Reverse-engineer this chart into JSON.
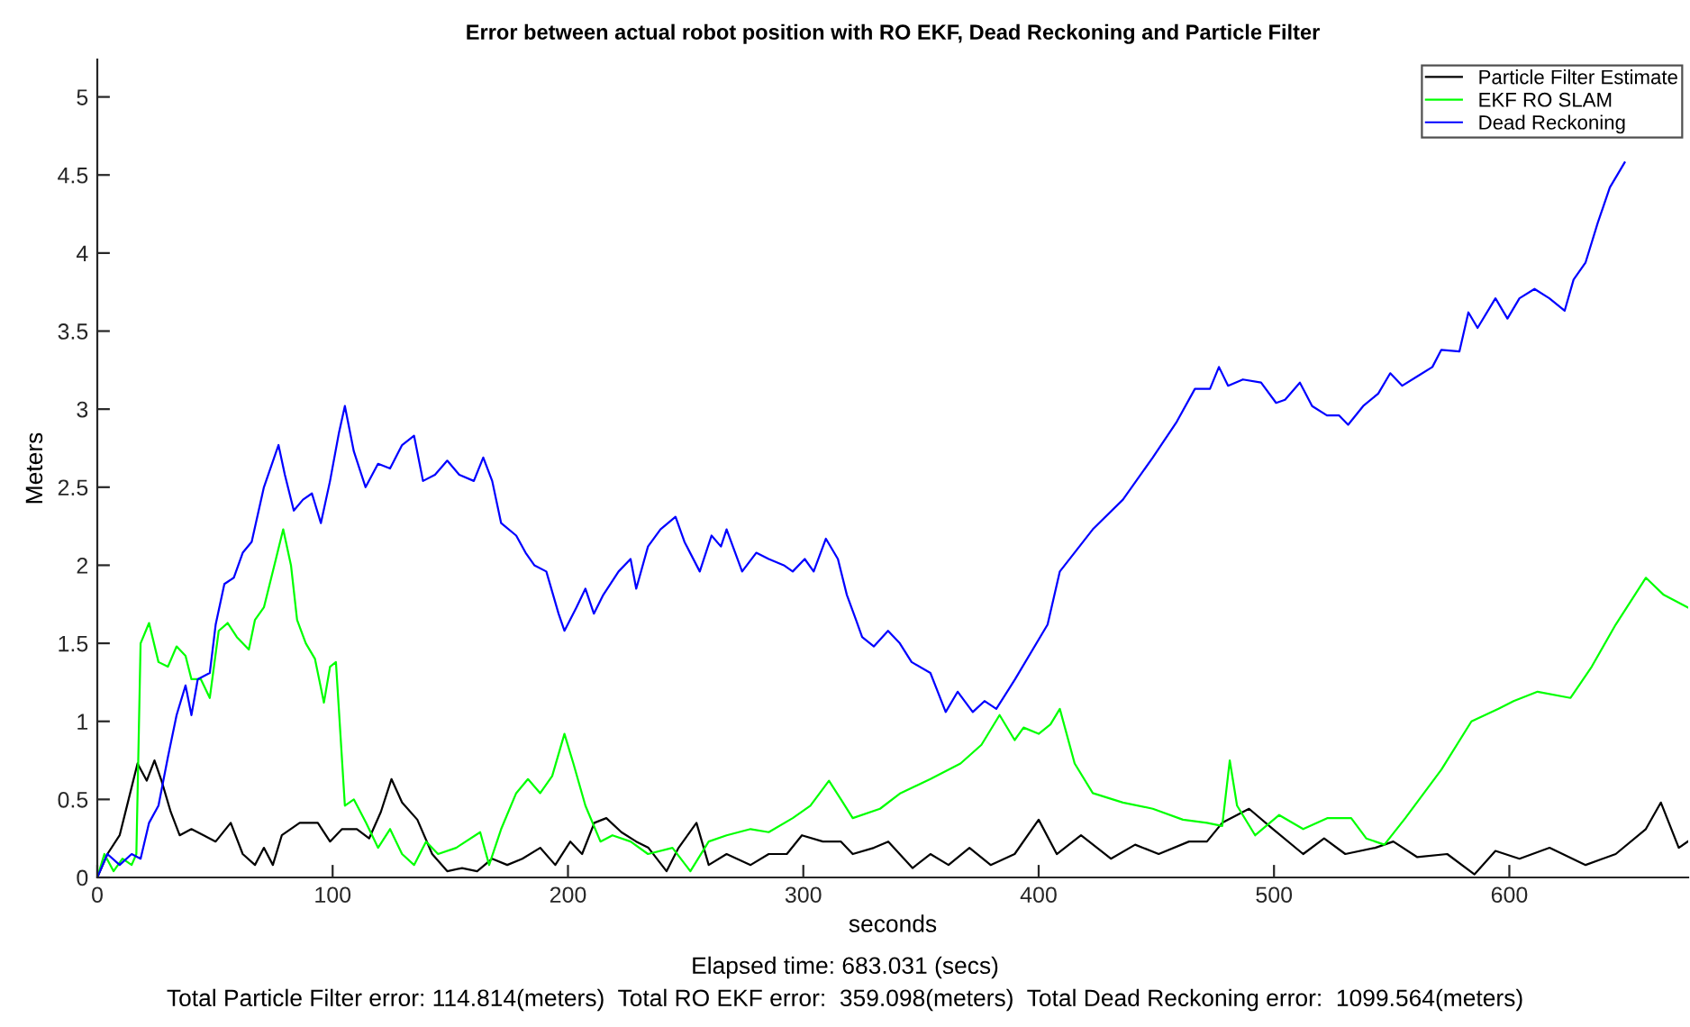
{
  "chart_data": {
    "type": "line",
    "title": "Error between actual robot position with RO EKF, Dead Reckoning and Particle Filter",
    "xlabel": "seconds",
    "ylabel": "Meters",
    "annotations": [
      "Elapsed time: 683.031 (secs)",
      "Total Particle Filter error: 114.814(meters)  Total RO EKF error:  359.098(meters)  Total Dead Reckoning error:  1099.564(meters)"
    ],
    "xlim": [
      0,
      676
    ],
    "ylim": [
      0,
      5.24
    ],
    "xticks": [
      0,
      100,
      200,
      300,
      400,
      500,
      600
    ],
    "yticks": [
      0,
      0.5,
      1,
      1.5,
      2,
      2.5,
      3,
      3.5,
      4,
      4.5,
      5
    ],
    "grid": false,
    "legend": "top right",
    "marker": "none",
    "line_style": "solid",
    "series": [
      {
        "name": "Particle Filter Estimate",
        "color": "#000000",
        "x": [
          0,
          4.3,
          9.5,
          13.3,
          17.1,
          21,
          24.3,
          27.3,
          31.2,
          35,
          40,
          45.2,
          50.3,
          56.7,
          61.8,
          67,
          70.8,
          74.6,
          78.4,
          86,
          93.7,
          98.9,
          104,
          110.3,
          115.5,
          120.5,
          125,
          129.5,
          136,
          142.3,
          148.7,
          155,
          161.4,
          167.8,
          174.2,
          180.6,
          188.2,
          194.6,
          201,
          206,
          211.2,
          216.3,
          222.7,
          229,
          234.2,
          241.9,
          247,
          254.6,
          259.8,
          267.4,
          277.6,
          285.3,
          293,
          299.4,
          308.3,
          316,
          321,
          330,
          336.1,
          346.4,
          354,
          361.7,
          370.6,
          379.6,
          389.8,
          400,
          407.7,
          418,
          430.7,
          441,
          451,
          463.9,
          471.5,
          478,
          489.4,
          499.6,
          512.4,
          521.3,
          530.3,
          543,
          550.7,
          560.9,
          573.6,
          585.2,
          594.1,
          604.3,
          617.1,
          632.4,
          645.2,
          658,
          664.4,
          672,
          675.8
        ],
        "values": [
          0,
          0.15,
          0.27,
          0.5,
          0.73,
          0.62,
          0.75,
          0.62,
          0.42,
          0.27,
          0.31,
          0.27,
          0.23,
          0.35,
          0.15,
          0.08,
          0.19,
          0.08,
          0.27,
          0.35,
          0.35,
          0.23,
          0.31,
          0.31,
          0.25,
          0.42,
          0.63,
          0.48,
          0.37,
          0.15,
          0.04,
          0.06,
          0.04,
          0.12,
          0.08,
          0.12,
          0.19,
          0.08,
          0.23,
          0.15,
          0.35,
          0.38,
          0.29,
          0.23,
          0.19,
          0.04,
          0.19,
          0.35,
          0.08,
          0.15,
          0.08,
          0.15,
          0.15,
          0.27,
          0.23,
          0.23,
          0.15,
          0.19,
          0.23,
          0.06,
          0.15,
          0.08,
          0.19,
          0.08,
          0.15,
          0.37,
          0.15,
          0.27,
          0.12,
          0.21,
          0.15,
          0.23,
          0.23,
          0.35,
          0.44,
          0.31,
          0.15,
          0.25,
          0.15,
          0.19,
          0.23,
          0.13,
          0.15,
          0.02,
          0.17,
          0.12,
          0.19,
          0.08,
          0.15,
          0.31,
          0.48,
          0.19,
          0.23
        ]
      },
      {
        "name": "EKF RO SLAM",
        "color": "#00ff00",
        "x": [
          0,
          3,
          6.9,
          10.7,
          14.6,
          16.6,
          18.4,
          22,
          26,
          30,
          33.7,
          37.5,
          40,
          44,
          47.8,
          51.6,
          55.4,
          59.3,
          64.4,
          67,
          70.8,
          75.9,
          79,
          82.3,
          84.9,
          88.6,
          92.5,
          96.3,
          98.9,
          101.4,
          105.2,
          109,
          114.2,
          119.3,
          124.4,
          129.5,
          134.6,
          139.7,
          144.8,
          152.5,
          162.7,
          166.5,
          171.6,
          178,
          183,
          188.2,
          193.3,
          198.5,
          202.3,
          207.4,
          213.8,
          218.9,
          226.6,
          234,
          244.4,
          252,
          259.8,
          267.4,
          277.6,
          285.3,
          295.5,
          303,
          310.9,
          316,
          321,
          332.6,
          341.3,
          354,
          366.8,
          375.7,
          383.4,
          389.8,
          393.6,
          400,
          405,
          409,
          415.3,
          423,
          435.8,
          448.5,
          461.3,
          471.5,
          478,
          481.2,
          484.3,
          492,
          502.2,
          512.4,
          522.6,
          532.8,
          539.2,
          546.9,
          555.8,
          571.1,
          583.9,
          595.4,
          601.8,
          612,
          626,
          635,
          645.2,
          658,
          665.6,
          675.8
        ],
        "values": [
          0,
          0.15,
          0.04,
          0.12,
          0.08,
          0.15,
          1.5,
          1.63,
          1.38,
          1.35,
          1.48,
          1.42,
          1.27,
          1.27,
          1.15,
          1.58,
          1.63,
          1.54,
          1.46,
          1.65,
          1.73,
          2.04,
          2.23,
          2.0,
          1.65,
          1.5,
          1.4,
          1.12,
          1.35,
          1.38,
          0.46,
          0.5,
          0.35,
          0.19,
          0.31,
          0.15,
          0.08,
          0.23,
          0.15,
          0.19,
          0.29,
          0.08,
          0.31,
          0.54,
          0.63,
          0.54,
          0.65,
          0.92,
          0.73,
          0.46,
          0.23,
          0.27,
          0.23,
          0.15,
          0.19,
          0.04,
          0.23,
          0.27,
          0.31,
          0.29,
          0.38,
          0.46,
          0.62,
          0.5,
          0.38,
          0.44,
          0.54,
          0.63,
          0.73,
          0.85,
          1.04,
          0.88,
          0.96,
          0.92,
          0.98,
          1.08,
          0.73,
          0.54,
          0.48,
          0.44,
          0.37,
          0.35,
          0.33,
          0.75,
          0.46,
          0.27,
          0.4,
          0.31,
          0.38,
          0.38,
          0.25,
          0.21,
          0.38,
          0.69,
          1.0,
          1.08,
          1.13,
          1.19,
          1.15,
          1.35,
          1.62,
          1.92,
          1.81,
          1.73
        ]
      },
      {
        "name": "Dead Reckoning",
        "color": "#0000ff",
        "x": [
          0,
          4.3,
          9.5,
          14.6,
          18.4,
          22,
          26,
          30,
          33.7,
          37.5,
          40,
          42.7,
          47.8,
          50.3,
          54,
          58,
          61.8,
          65.6,
          70.8,
          77,
          79.7,
          83.5,
          87.4,
          91.2,
          95,
          98.9,
          102.7,
          105.2,
          109,
          114,
          119.3,
          124.4,
          129.5,
          134.6,
          138.4,
          143.5,
          148.7,
          153.8,
          160,
          164,
          167.8,
          171.6,
          178,
          182,
          185.7,
          190.8,
          196,
          198.5,
          203.6,
          207.4,
          211,
          215,
          221.5,
          226.6,
          229,
          234,
          239.3,
          245.7,
          249.5,
          256,
          261,
          265,
          267.4,
          274,
          280,
          285.3,
          291.7,
          295.5,
          300.6,
          304.4,
          309.6,
          314.7,
          318.5,
          322.4,
          325,
          330,
          336,
          341,
          346,
          354,
          360.5,
          365.6,
          372,
          377,
          382,
          390,
          403.8,
          409,
          423,
          435.8,
          448.5,
          458.7,
          466.4,
          472.8,
          476.6,
          480.5,
          486.8,
          494.5,
          500.9,
          504.7,
          511,
          516.2,
          522.5,
          527.6,
          531.5,
          537.9,
          544.3,
          549.4,
          554.5,
          560.9,
          567.3,
          571.1,
          578.8,
          582.6,
          586.5,
          594.1,
          599.2,
          604.3,
          610.7,
          617,
          623.5,
          627.3,
          632.4,
          637.5,
          642.7,
          649
        ],
        "values": [
          0,
          0.15,
          0.08,
          0.15,
          0.12,
          0.35,
          0.46,
          0.77,
          1.04,
          1.23,
          1.04,
          1.27,
          1.31,
          1.62,
          1.88,
          1.92,
          2.08,
          2.15,
          2.5,
          2.77,
          2.58,
          2.35,
          2.42,
          2.46,
          2.27,
          2.54,
          2.85,
          3.02,
          2.73,
          2.5,
          2.65,
          2.62,
          2.77,
          2.83,
          2.54,
          2.58,
          2.67,
          2.58,
          2.54,
          2.69,
          2.54,
          2.27,
          2.19,
          2.08,
          2.0,
          1.96,
          1.69,
          1.58,
          1.73,
          1.85,
          1.69,
          1.81,
          1.96,
          2.04,
          1.85,
          2.12,
          2.23,
          2.31,
          2.15,
          1.96,
          2.19,
          2.12,
          2.23,
          1.96,
          2.08,
          2.04,
          2.0,
          1.96,
          2.04,
          1.96,
          2.17,
          2.04,
          1.81,
          1.65,
          1.54,
          1.48,
          1.58,
          1.5,
          1.38,
          1.31,
          1.06,
          1.19,
          1.06,
          1.13,
          1.08,
          1.27,
          1.62,
          1.96,
          2.23,
          2.42,
          2.69,
          2.92,
          3.13,
          3.13,
          3.27,
          3.15,
          3.19,
          3.17,
          3.04,
          3.06,
          3.17,
          3.02,
          2.96,
          2.96,
          2.9,
          3.02,
          3.1,
          3.23,
          3.15,
          3.21,
          3.27,
          3.38,
          3.37,
          3.62,
          3.52,
          3.71,
          3.58,
          3.71,
          3.77,
          3.71,
          3.63,
          3.83,
          3.94,
          4.19,
          4.42,
          4.58
        ]
      }
    ]
  }
}
